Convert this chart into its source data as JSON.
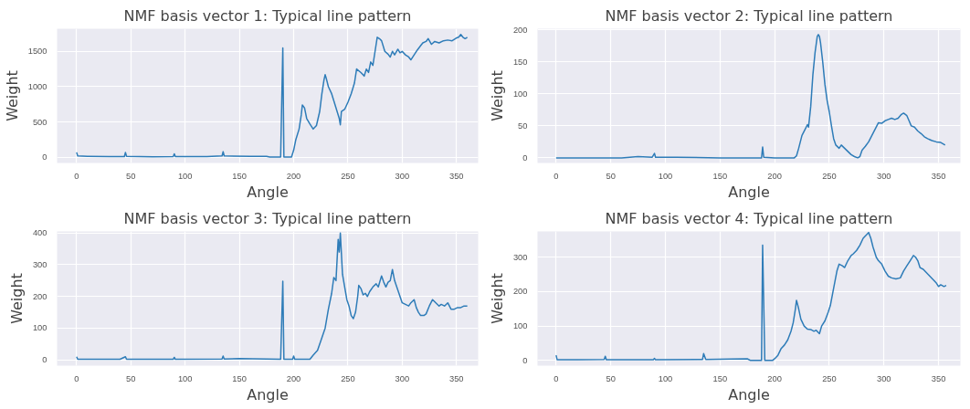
{
  "chart_data": [
    {
      "type": "line",
      "title": "NMF basis vector 1: Typical line pattern",
      "xlabel": "Angle",
      "ylabel": "Weight",
      "xlim": [
        -18,
        370
      ],
      "ylim": [
        -80,
        1820
      ],
      "xticks": [
        0,
        50,
        100,
        150,
        200,
        250,
        300,
        350
      ],
      "yticks": [
        0,
        500,
        1000,
        1500
      ],
      "grid": true,
      "line_style": "solid",
      "series": [
        {
          "color": "#2e7cb8",
          "x": [
            0,
            1,
            10,
            30,
            44,
            45,
            46,
            70,
            89,
            90,
            91,
            120,
            134,
            135,
            136,
            160,
            175,
            178,
            188,
            190,
            191,
            198,
            200,
            202,
            205,
            207,
            208,
            210,
            212,
            215,
            218,
            221,
            224,
            226,
            228,
            229,
            230,
            232,
            235,
            238,
            240,
            242,
            243,
            244,
            247,
            250,
            253,
            256,
            258,
            262,
            265,
            267,
            269,
            271,
            273,
            275,
            277,
            279,
            281,
            284,
            287,
            289,
            291,
            293,
            296,
            298,
            300,
            303,
            306,
            308,
            311,
            314,
            317,
            319,
            322,
            324,
            327,
            330,
            334,
            338,
            342,
            346,
            350,
            352,
            354,
            356,
            358,
            360
          ],
          "values": [
            70,
            20,
            15,
            10,
            10,
            70,
            15,
            8,
            10,
            50,
            10,
            10,
            20,
            80,
            20,
            15,
            15,
            5,
            5,
            1550,
            5,
            5,
            100,
            250,
            400,
            600,
            740,
            700,
            550,
            470,
            400,
            450,
            650,
            900,
            1100,
            1170,
            1120,
            1000,
            900,
            750,
            650,
            550,
            460,
            650,
            680,
            780,
            900,
            1050,
            1250,
            1200,
            1150,
            1250,
            1200,
            1350,
            1300,
            1500,
            1700,
            1680,
            1650,
            1500,
            1460,
            1420,
            1500,
            1450,
            1530,
            1480,
            1500,
            1450,
            1420,
            1380,
            1450,
            1520,
            1580,
            1620,
            1640,
            1680,
            1600,
            1640,
            1620,
            1650,
            1660,
            1650,
            1690,
            1700,
            1740,
            1700,
            1680,
            1700
          ]
        }
      ]
    },
    {
      "type": "line",
      "title": "NMF basis vector 2: Typical line pattern",
      "xlabel": "Angle",
      "ylabel": "Weight",
      "xlim": [
        -17,
        370
      ],
      "ylim": [
        -8,
        202
      ],
      "xticks": [
        0,
        50,
        100,
        150,
        200,
        250,
        300,
        350
      ],
      "yticks": [
        0,
        50,
        100,
        150,
        200
      ],
      "grid": true,
      "line_style": "solid",
      "series": [
        {
          "color": "#2e7cb8",
          "x": [
            0,
            60,
            75,
            88,
            90,
            91,
            110,
            150,
            188,
            189,
            190,
            200,
            218,
            220,
            222,
            225,
            228,
            230,
            231,
            233,
            235,
            237,
            239,
            240,
            241,
            242,
            244,
            246,
            248,
            250,
            252,
            254,
            256,
            259,
            261,
            264,
            267,
            270,
            273,
            276,
            278,
            280,
            283,
            286,
            289,
            292,
            295,
            298,
            301,
            304,
            307,
            310,
            313,
            316,
            318,
            321,
            323,
            325,
            328,
            331,
            334,
            337,
            340,
            344,
            348,
            352,
            356
          ],
          "values": [
            0,
            0,
            2,
            1,
            7,
            1,
            1,
            0,
            0,
            17,
            1,
            0,
            0,
            3,
            15,
            35,
            45,
            52,
            48,
            80,
            130,
            165,
            190,
            193,
            190,
            180,
            150,
            115,
            90,
            72,
            50,
            30,
            20,
            15,
            20,
            15,
            10,
            5,
            2,
            0,
            2,
            12,
            18,
            25,
            35,
            45,
            55,
            54,
            58,
            60,
            62,
            60,
            62,
            68,
            70,
            66,
            58,
            50,
            48,
            42,
            38,
            33,
            30,
            27,
            25,
            24,
            20
          ]
        }
      ]
    },
    {
      "type": "line",
      "title": "NMF basis vector 3: Typical line pattern",
      "xlabel": "Angle",
      "ylabel": "Weight",
      "xlim": [
        -18,
        370
      ],
      "ylim": [
        -18,
        405
      ],
      "xticks": [
        0,
        50,
        100,
        150,
        200,
        250,
        300,
        350
      ],
      "yticks": [
        0,
        100,
        200,
        300,
        400
      ],
      "grid": true,
      "line_style": "solid",
      "series": [
        {
          "color": "#2e7cb8",
          "x": [
            0,
            1,
            40,
            45,
            46,
            89,
            90,
            91,
            134,
            135,
            136,
            150,
            175,
            188,
            190,
            191,
            199,
            200,
            201,
            215,
            218,
            222,
            226,
            229,
            232,
            235,
            237,
            239,
            241,
            242,
            243,
            245,
            247,
            249,
            251,
            253,
            255,
            257,
            259,
            260,
            262,
            264,
            266,
            268,
            270,
            273,
            276,
            278,
            281,
            283,
            285,
            287,
            289,
            291,
            293,
            296,
            298,
            300,
            303,
            306,
            308,
            311,
            313,
            315,
            317,
            320,
            322,
            325,
            328,
            331,
            334,
            336,
            339,
            342,
            345,
            348,
            351,
            354,
            357,
            360
          ],
          "values": [
            10,
            2,
            2,
            10,
            2,
            2,
            8,
            2,
            3,
            12,
            3,
            4,
            3,
            2,
            248,
            2,
            2,
            12,
            2,
            2,
            15,
            30,
            70,
            100,
            160,
            210,
            260,
            250,
            380,
            340,
            400,
            270,
            230,
            190,
            170,
            140,
            130,
            150,
            200,
            235,
            225,
            205,
            210,
            200,
            215,
            230,
            240,
            230,
            265,
            245,
            230,
            245,
            250,
            285,
            250,
            220,
            200,
            180,
            175,
            170,
            180,
            190,
            165,
            150,
            140,
            140,
            145,
            170,
            190,
            180,
            170,
            175,
            170,
            180,
            160,
            160,
            165,
            165,
            170,
            170
          ]
        }
      ]
    },
    {
      "type": "line",
      "title": "NMF basis vector 4: Typical line pattern",
      "xlabel": "Angle",
      "ylabel": "Weight",
      "xlim": [
        -17,
        370
      ],
      "ylim": [
        -15,
        375
      ],
      "xticks": [
        0,
        50,
        100,
        150,
        200,
        250,
        300,
        350
      ],
      "yticks": [
        0,
        100,
        200,
        300
      ],
      "grid": true,
      "line_style": "solid",
      "series": [
        {
          "color": "#2e7cb8",
          "x": [
            0,
            1,
            20,
            44,
            45,
            46,
            89,
            90,
            91,
            134,
            135,
            137,
            160,
            175,
            178,
            188,
            189,
            191,
            198,
            200,
            203,
            206,
            209,
            212,
            215,
            217,
            219,
            220,
            222,
            224,
            227,
            230,
            233,
            236,
            238,
            241,
            243,
            246,
            249,
            251,
            254,
            257,
            259,
            262,
            264,
            267,
            270,
            272,
            275,
            278,
            281,
            284,
            286,
            288,
            290,
            293,
            295,
            298,
            301,
            304,
            307,
            311,
            315,
            318,
            321,
            324,
            327,
            329,
            331,
            333,
            336,
            339,
            342,
            345,
            348,
            350,
            352,
            355,
            357
          ],
          "values": [
            15,
            2,
            2,
            3,
            12,
            2,
            2,
            6,
            2,
            3,
            20,
            3,
            4,
            5,
            0,
            0,
            335,
            0,
            0,
            5,
            15,
            35,
            45,
            60,
            85,
            110,
            150,
            175,
            150,
            120,
            100,
            91,
            90,
            85,
            88,
            78,
            100,
            115,
            140,
            160,
            210,
            260,
            280,
            275,
            270,
            290,
            305,
            310,
            320,
            335,
            355,
            365,
            372,
            355,
            330,
            300,
            290,
            280,
            260,
            245,
            240,
            237,
            240,
            260,
            275,
            290,
            305,
            300,
            290,
            270,
            265,
            255,
            245,
            235,
            225,
            215,
            220,
            215,
            218
          ]
        }
      ]
    }
  ]
}
